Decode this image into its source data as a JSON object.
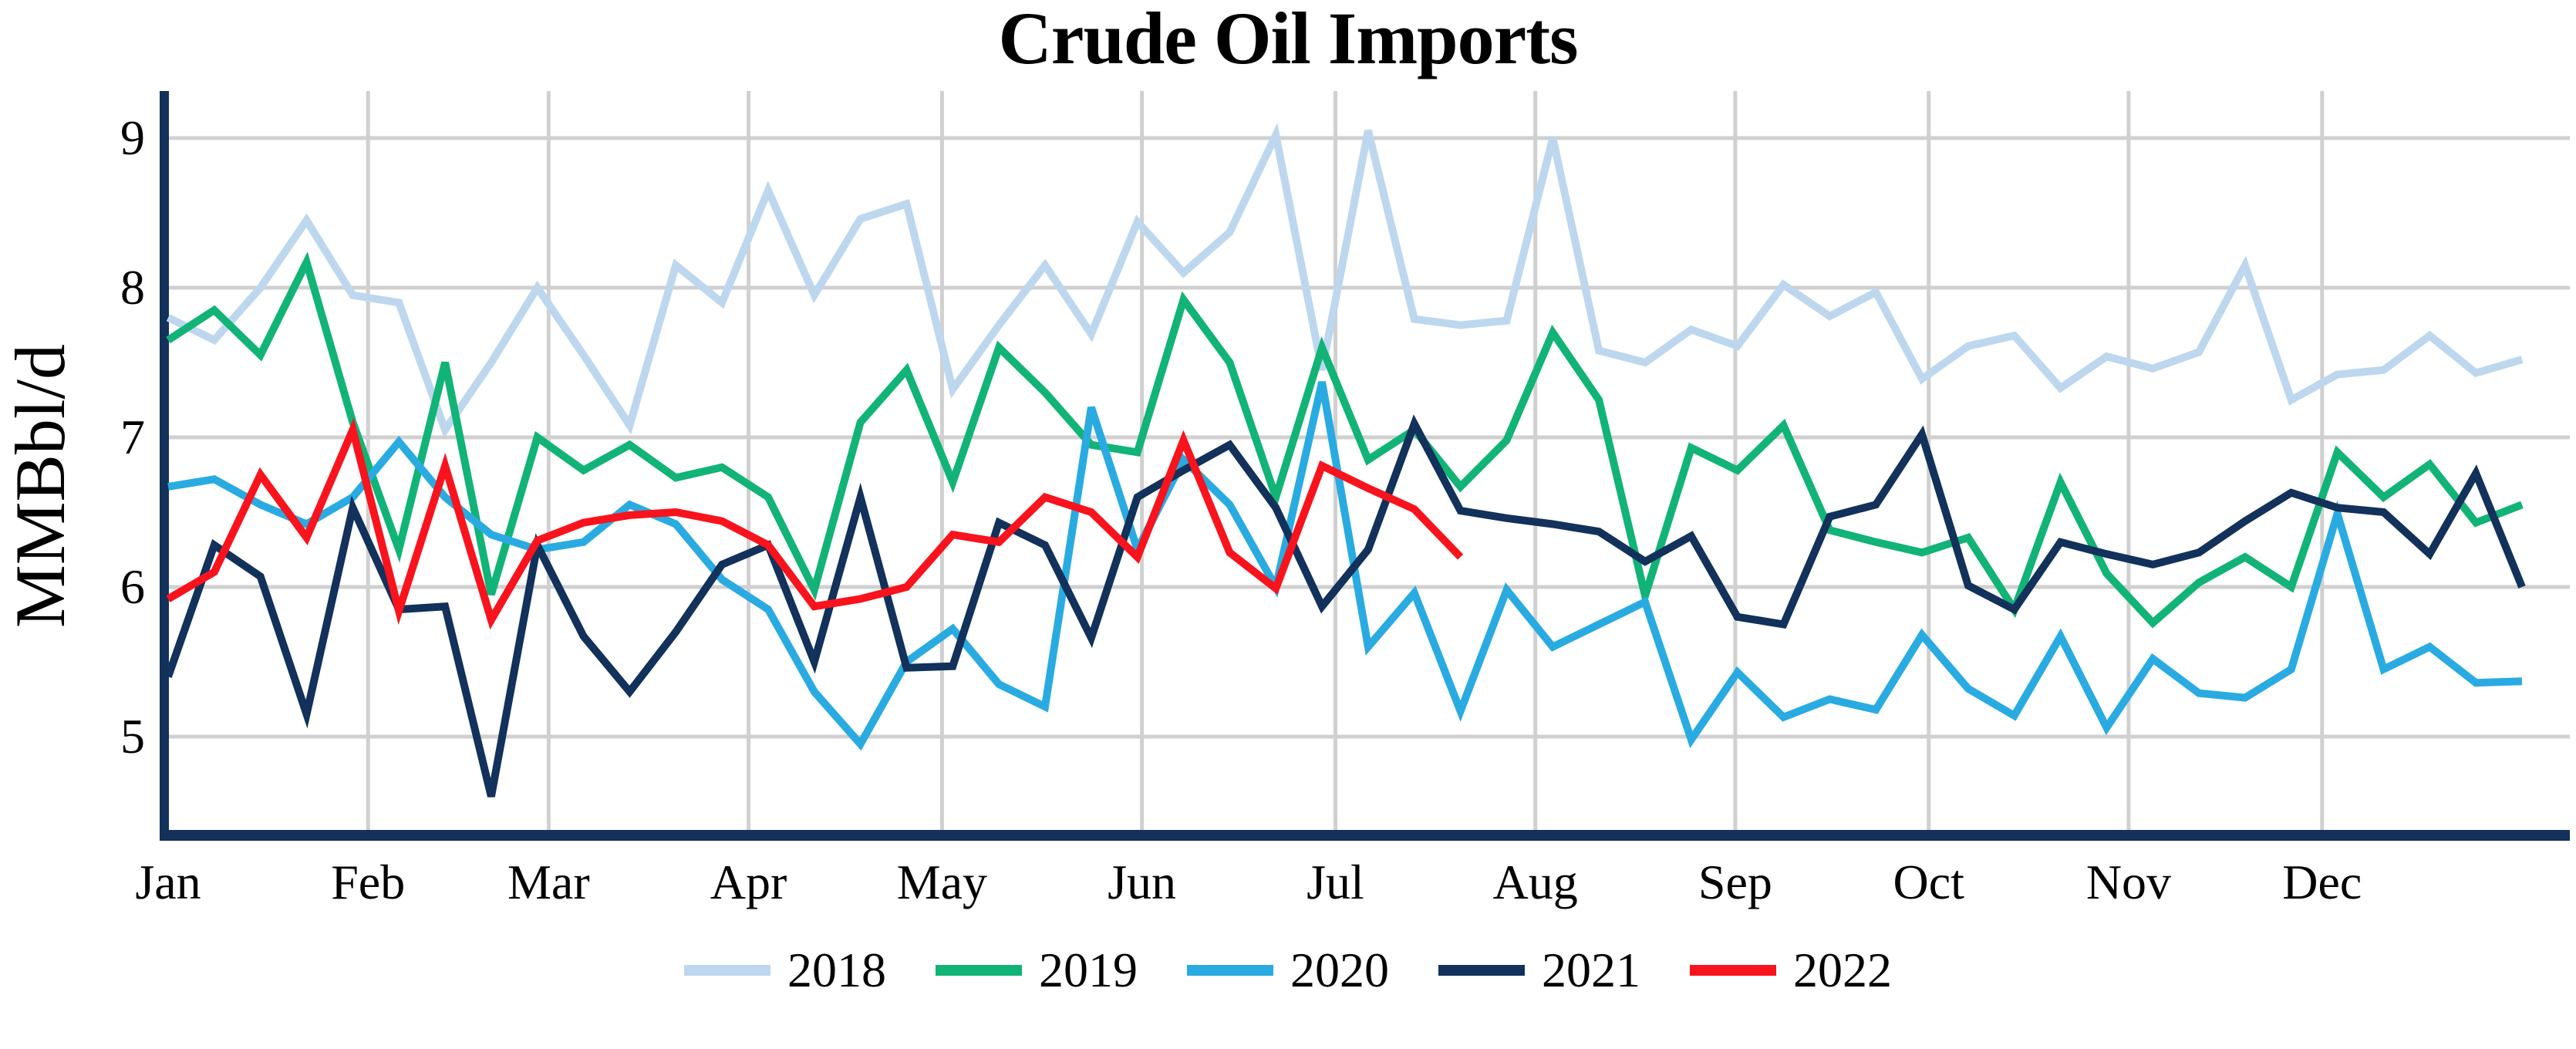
{
  "title": "Crude Oil Imports",
  "chart_data": {
    "type": "line",
    "title": "Crude Oil Imports",
    "xlabel": "",
    "ylabel": "MMBbl/d",
    "x_unit": "week-of-year",
    "x_tick_labels": [
      "Jan",
      "Feb",
      "Mar",
      "Apr",
      "May",
      "Jun",
      "Jul",
      "Aug",
      "Sep",
      "Oct",
      "Nov",
      "Dec"
    ],
    "month_start_days": [
      0,
      31,
      59,
      90,
      120,
      151,
      181,
      212,
      243,
      273,
      304,
      334
    ],
    "y_ticks": [
      5,
      6,
      7,
      8,
      9
    ],
    "ylim": [
      4.35,
      9.35
    ],
    "grid": true,
    "legend_position": "bottom",
    "axis_color": "#12315B",
    "grid_color": "#D0D0D0",
    "series": [
      {
        "name": "2018",
        "color": "#BDD7EE",
        "values": [
          7.8,
          7.65,
          8.0,
          8.45,
          7.95,
          7.9,
          7.05,
          7.5,
          8.0,
          7.55,
          7.08,
          8.15,
          7.9,
          8.65,
          7.95,
          8.46,
          8.56,
          7.32,
          7.75,
          8.15,
          7.69,
          8.44,
          8.1,
          8.37,
          9.02,
          7.45,
          9.05,
          7.79,
          7.75,
          7.78,
          9.0,
          7.58,
          7.5,
          7.72,
          7.61,
          8.02,
          7.81,
          7.97,
          7.39,
          7.61,
          7.68,
          7.33,
          7.54,
          7.46,
          7.57,
          8.15,
          7.25,
          7.42,
          7.45,
          7.68,
          7.43,
          7.52
        ]
      },
      {
        "name": "2019",
        "color": "#12B377",
        "values": [
          7.65,
          7.85,
          7.55,
          8.17,
          7.1,
          6.25,
          7.5,
          5.95,
          7.0,
          6.78,
          6.95,
          6.73,
          6.8,
          6.6,
          5.98,
          7.1,
          7.45,
          6.7,
          7.6,
          7.3,
          6.95,
          6.9,
          7.92,
          7.5,
          6.6,
          7.6,
          6.85,
          7.05,
          6.67,
          6.98,
          7.7,
          7.25,
          5.94,
          6.93,
          6.78,
          7.08,
          6.38,
          6.3,
          6.23,
          6.33,
          5.85,
          6.7,
          6.09,
          5.76,
          6.03,
          6.2,
          6.0,
          6.9,
          6.6,
          6.82,
          6.43,
          6.55
        ]
      },
      {
        "name": "2020",
        "color": "#29ABE2",
        "values": [
          6.67,
          6.72,
          6.55,
          6.42,
          6.6,
          6.97,
          6.6,
          6.35,
          6.25,
          6.3,
          6.55,
          6.42,
          6.05,
          5.85,
          5.3,
          4.95,
          5.5,
          5.72,
          5.35,
          5.2,
          7.2,
          6.25,
          6.85,
          6.55,
          6.0,
          7.37,
          5.6,
          5.96,
          5.17,
          5.98,
          5.6,
          5.75,
          5.9,
          4.98,
          5.43,
          5.13,
          5.25,
          5.18,
          5.68,
          5.32,
          5.14,
          5.67,
          5.06,
          5.52,
          5.29,
          5.26,
          5.45,
          6.49,
          5.45,
          5.6,
          5.36,
          5.37
        ]
      },
      {
        "name": "2021",
        "color": "#12315B",
        "values": [
          5.4,
          6.28,
          6.07,
          5.15,
          6.53,
          5.85,
          5.87,
          4.6,
          6.28,
          5.67,
          5.3,
          5.7,
          6.15,
          6.28,
          5.5,
          6.6,
          5.46,
          5.47,
          6.43,
          6.28,
          5.66,
          6.6,
          6.78,
          6.95,
          6.53,
          5.87,
          6.25,
          7.09,
          6.51,
          6.46,
          6.42,
          6.37,
          6.17,
          6.34,
          5.8,
          5.75,
          6.47,
          6.55,
          7.02,
          6.01,
          5.85,
          6.3,
          6.22,
          6.15,
          6.23,
          6.44,
          6.63,
          6.53,
          6.5,
          6.22,
          6.76,
          6.0
        ]
      },
      {
        "name": "2022",
        "color": "#F8131D",
        "values": [
          5.92,
          6.1,
          6.75,
          6.33,
          7.05,
          5.84,
          6.81,
          5.78,
          6.31,
          6.43,
          6.48,
          6.5,
          6.44,
          6.28,
          5.87,
          5.92,
          6.0,
          6.35,
          6.3,
          6.6,
          6.5,
          6.2,
          6.98,
          6.23,
          5.99,
          6.81,
          6.66,
          6.52,
          6.2
        ]
      }
    ]
  },
  "legend": {
    "items": [
      "2018",
      "2019",
      "2020",
      "2021",
      "2022"
    ]
  }
}
